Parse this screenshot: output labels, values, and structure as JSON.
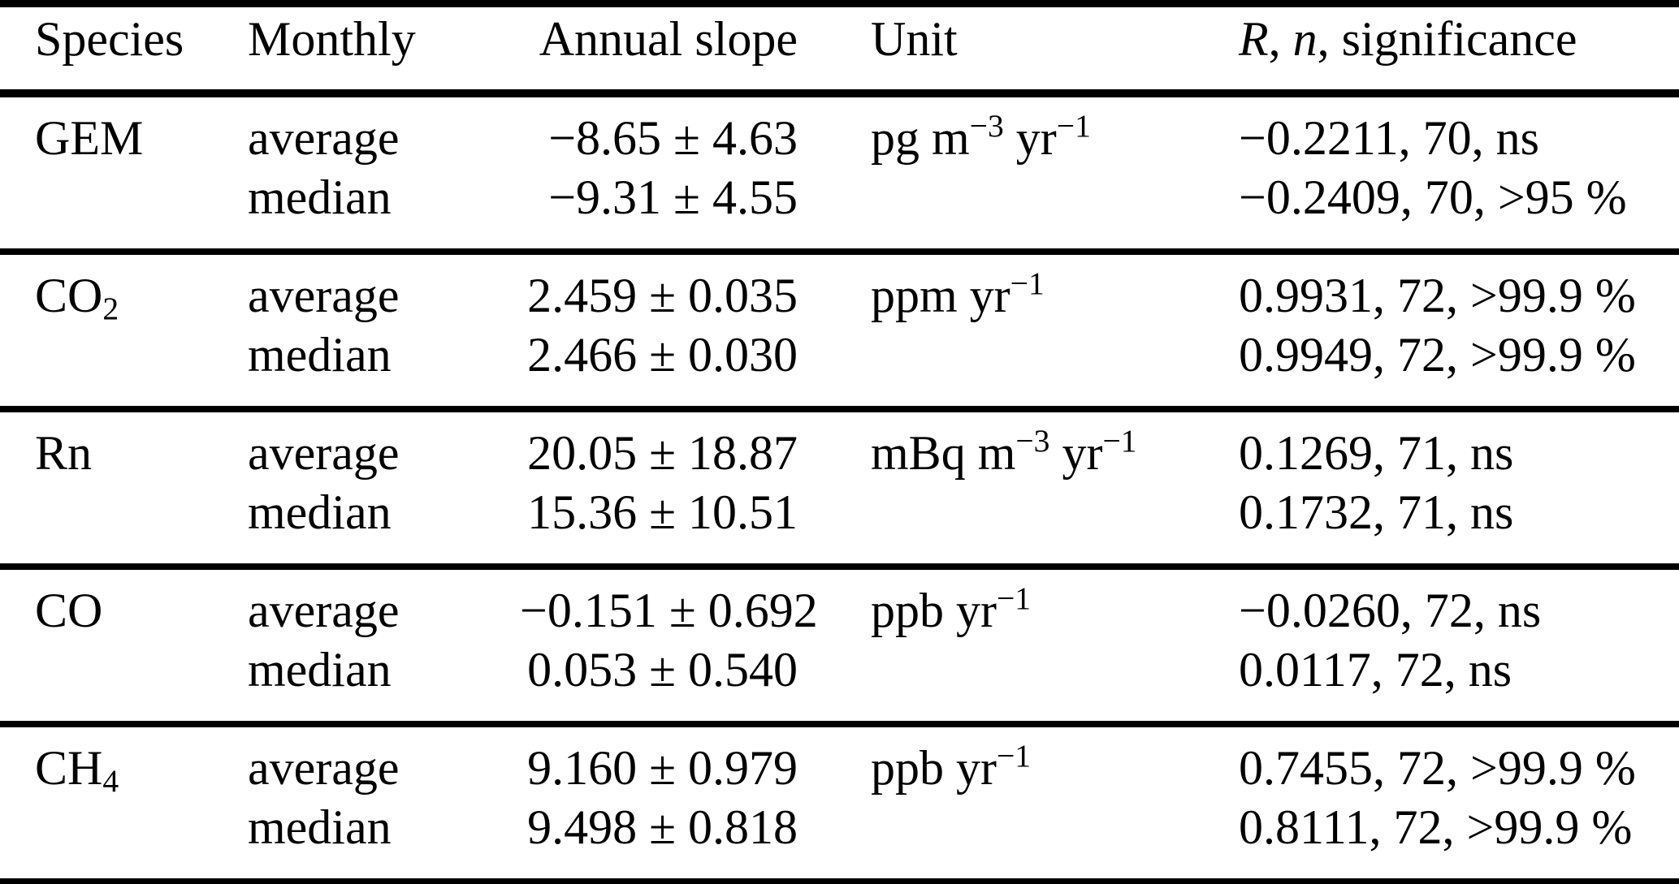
{
  "colors": {
    "background": "#ffffff",
    "text": "#000000",
    "rule": "#000000"
  },
  "table": {
    "columns": {
      "species": "Species",
      "monthly": "Monthly",
      "slope": "Annual slope",
      "unit": "Unit",
      "significance": "*R*, *n*, significance"
    },
    "rows": [
      {
        "species": "GEM",
        "unit": "pg m^{−3} yr^{−1}",
        "lines": [
          {
            "monthly": "average",
            "slope": "−8.65 ± 4.63",
            "rns": "−0.2211, 70, ns"
          },
          {
            "monthly": "median",
            "slope": "−9.31 ± 4.55",
            "rns": "−0.2409, 70, >95 %"
          }
        ]
      },
      {
        "species": "CO_{2}",
        "unit": "ppm yr^{−1}",
        "lines": [
          {
            "monthly": "average",
            "slope": "2.459 ± 0.035",
            "rns": "0.9931, 72, >99.9 %"
          },
          {
            "monthly": "median",
            "slope": "2.466 ± 0.030",
            "rns": "0.9949, 72, >99.9 %"
          }
        ]
      },
      {
        "species": "Rn",
        "unit": "mBq m^{−3} yr^{−1}",
        "lines": [
          {
            "monthly": "average",
            "slope": "20.05 ± 18.87",
            "rns": "0.1269, 71, ns"
          },
          {
            "monthly": "median",
            "slope": "15.36 ± 10.51",
            "rns": "0.1732, 71, ns"
          }
        ]
      },
      {
        "species": "CO",
        "unit": "ppb yr^{−1}",
        "lines": [
          {
            "monthly": "average",
            "slope": "−0.151 ± 0.692",
            "rns": "−0.0260, 72, ns"
          },
          {
            "monthly": "median",
            "slope": "0.053 ± 0.540",
            "rns": "0.0117, 72, ns"
          }
        ]
      },
      {
        "species": "CH_{4}",
        "unit": "ppb yr^{−1}",
        "lines": [
          {
            "monthly": "average",
            "slope": "9.160 ± 0.979",
            "rns": "0.7455, 72, >99.9 %"
          },
          {
            "monthly": "median",
            "slope": "9.498 ± 0.818",
            "rns": "0.8111, 72, >99.9 %"
          }
        ]
      }
    ]
  }
}
